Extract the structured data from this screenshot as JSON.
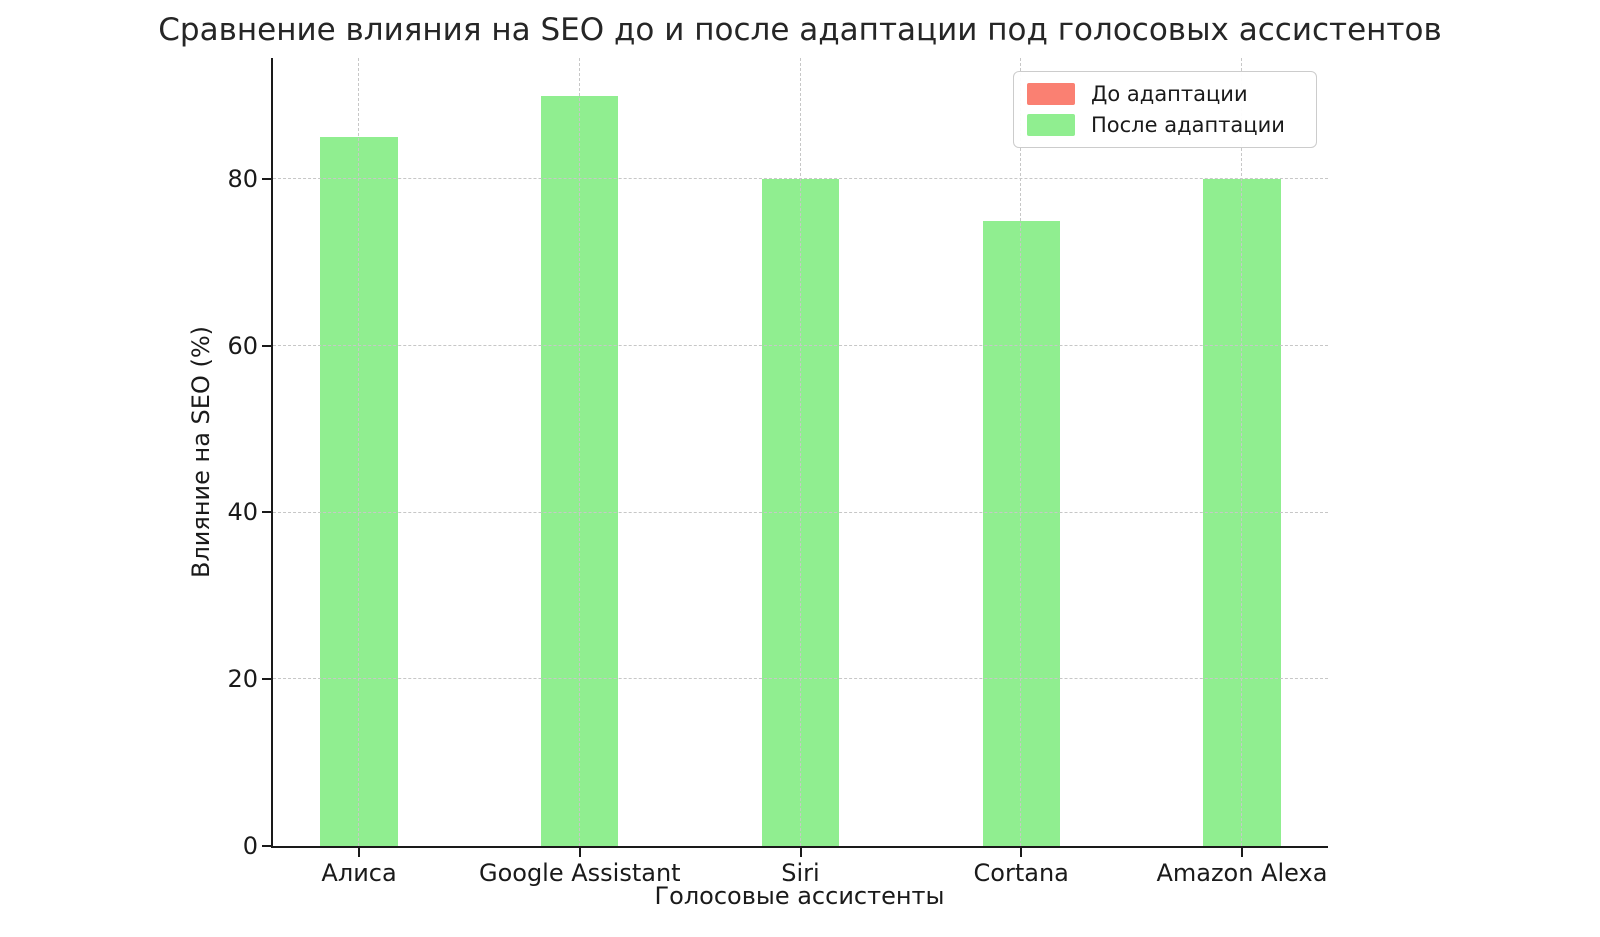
{
  "chart_data": {
    "type": "bar",
    "title": "Сравнение влияния на SEO до и после адаптации под голосовых ассистентов",
    "xlabel": "Голосовые ассистенты",
    "ylabel": "Влияние на SEO (%)",
    "categories": [
      "Алиса",
      "Google Assistant",
      "Siri",
      "Cortana",
      "Amazon Alexa"
    ],
    "series": [
      {
        "id": "before-adaptation",
        "name": "До адаптации",
        "color": "#fa8072",
        "values": null,
        "visible_in_image": false,
        "note": "bars not visible in the screenshot (fully occluded by the green bars drawn at the same x positions)"
      },
      {
        "id": "after-adaptation",
        "name": "После адаптации",
        "color": "#90ee90",
        "values": [
          85,
          90,
          80,
          75,
          80
        ],
        "visible_in_image": true
      }
    ],
    "yticks": [
      0,
      20,
      40,
      60,
      80
    ],
    "axes": {
      "xlim": [
        -0.39,
        4.39
      ],
      "ylim": [
        0,
        94.5
      ],
      "bar_width_units": 0.35
    },
    "grid": {
      "show": true,
      "style": "dashed",
      "color": "#c7c7c7",
      "horizontal": true,
      "vertical": true,
      "drawn_above_bars": true
    },
    "legend": {
      "position": "upper right",
      "entries": [
        "До адаптации",
        "После адаптации"
      ]
    }
  }
}
